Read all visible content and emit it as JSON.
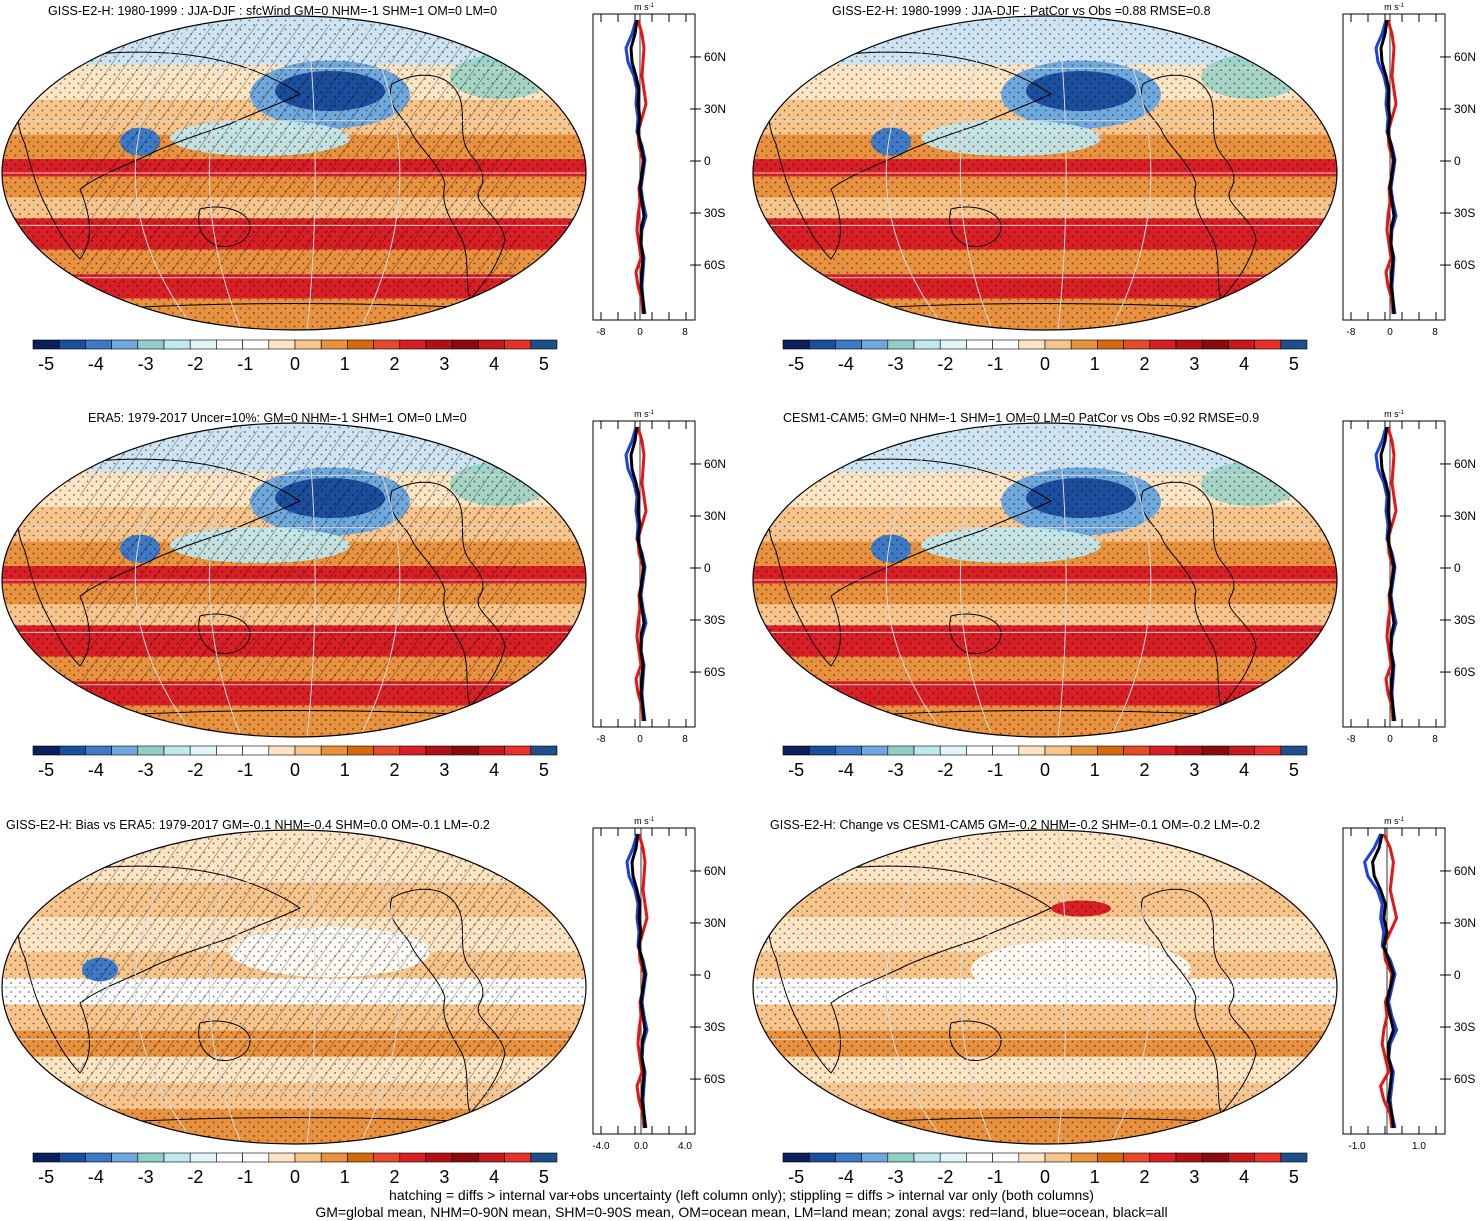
{
  "panels": [
    {
      "id": "p1",
      "title": "GISS-E2-H: 1980-1999 : JJA-DJF : sfcWind GM=0 NHM=-1 SHM=1 OM=0 LM=0",
      "zonal_ticks": [
        "-8",
        "0",
        "8"
      ],
      "hatch": true,
      "stipple": true
    },
    {
      "id": "p2",
      "title": "GISS-E2-H: 1980-1999 : JJA-DJF : PatCor vs Obs =0.88 RMSE=0.8",
      "zonal_ticks": [
        "-8",
        "0",
        "8"
      ],
      "hatch": false,
      "stipple": true
    },
    {
      "id": "p3",
      "title": "ERA5: 1979-2017 Uncer=10%: GM=0 NHM=-1 SHM=1 OM=0 LM=0",
      "zonal_ticks": [
        "-8",
        "0",
        "8"
      ],
      "hatch": true,
      "stipple": true
    },
    {
      "id": "p4",
      "title": "CESM1-CAM5: GM=0 NHM=-1 SHM=1 OM=0 LM=0 PatCor vs Obs =0.92 RMSE=0.9",
      "zonal_ticks": [
        "-8",
        "0",
        "8"
      ],
      "hatch": false,
      "stipple": true
    },
    {
      "id": "p5",
      "title": "GISS-E2-H: Bias vs ERA5: 1979-2017 GM=-0.1 NHM=-0.4 SHM=0.0 OM=-0.1 LM=-0.2",
      "zonal_ticks": [
        "-4.0",
        "0.0",
        "4.0"
      ],
      "hatch": true,
      "stipple": true
    },
    {
      "id": "p6",
      "title": "GISS-E2-H: Change vs CESM1-CAM5 GM=-0.2 NHM=-0.2 SHM=-0.1 OM=-0.2 LM=-0.2",
      "zonal_ticks": [
        "-1.0",
        "1.0"
      ],
      "hatch": false,
      "stipple": true
    }
  ],
  "zonal_units": "m s",
  "zonal_units_exp": "-1",
  "lat_labels": [
    "60N",
    "30N",
    "0",
    "30S",
    "60S"
  ],
  "colorbar": {
    "labels": [
      "-5",
      "-4",
      "-3",
      "-2",
      "-1",
      "0",
      "1",
      "2",
      "3",
      "4",
      "5"
    ],
    "colors": [
      "#0a1f5c",
      "#1c4e9e",
      "#3d79c4",
      "#6fa8dc",
      "#8fcfc6",
      "#bfe8f0",
      "#e2f5f8",
      "#ffffff",
      "#ffffff",
      "#fde4c2",
      "#f7c58c",
      "#e8913e",
      "#d46a0e",
      "#e54b2b",
      "#d91f26",
      "#b11117",
      "#8c0a0c",
      "#c41a1e",
      "#e8312a",
      "#1d4f8a"
    ]
  },
  "footer": {
    "line1": "hatching = diffs > internal var+obs uncertainty (left column only); stippling = diffs > internal var only (both columns)",
    "line2": "GM=global mean, NHM=0-90N mean, SHM=0-90S mean, OM=ocean mean, LM=land mean; zonal avgs: red=land, blue=ocean, black=all"
  }
}
